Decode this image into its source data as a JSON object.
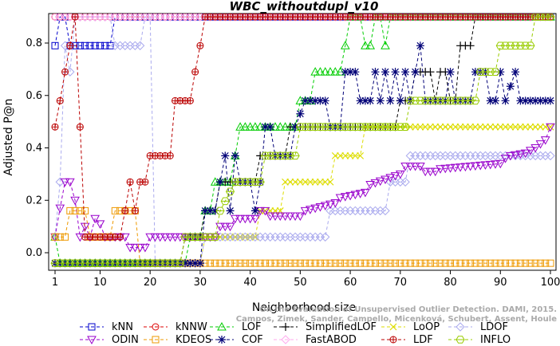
{
  "chart_data": {
    "type": "line",
    "title": "WBC_withoutdupl_v10",
    "xlabel": "Neighborhood size",
    "ylabel": "Adjusted P@n",
    "xlim": [
      1,
      100
    ],
    "ylim": [
      -0.04,
      0.9
    ],
    "xticks": [
      1,
      10,
      20,
      30,
      40,
      50,
      60,
      70,
      80,
      90,
      100
    ],
    "yticks": [
      0.0,
      0.2,
      0.4,
      0.6,
      0.8
    ],
    "grid": false,
    "legend_position": "bottom",
    "credit": "Campos, Zimek, Sander, Campello, Micenková, Schubert, Assent, Houle",
    "credit_line1": "On the Evaluation of Unsupervised Outlier Detection. DAMI, 2015.",
    "series": [
      {
        "name": "kNN",
        "color": "#0000cc",
        "marker": "square",
        "points": [
          [
            1,
            0.79
          ],
          [
            2,
            0.9
          ],
          [
            3,
            0.9
          ],
          [
            4,
            0.79
          ],
          [
            5,
            0.79
          ],
          [
            6,
            0.79
          ],
          [
            7,
            0.79
          ],
          [
            8,
            0.79
          ],
          [
            9,
            0.79
          ],
          [
            10,
            0.79
          ],
          [
            11,
            0.79
          ],
          [
            12,
            0.79
          ],
          [
            13,
            0.9
          ],
          [
            100,
            0.9
          ]
        ]
      },
      {
        "name": "kNNW",
        "color": "#dd0000",
        "marker": "circle",
        "points": [
          [
            1,
            0.9
          ],
          [
            3,
            0.9
          ],
          [
            100,
            0.9
          ]
        ]
      },
      {
        "name": "LOF",
        "color": "#00cc00",
        "marker": "triangle-up",
        "points": [
          [
            1,
            0.06
          ],
          [
            2,
            -0.04
          ],
          [
            27,
            -0.04
          ],
          [
            28,
            0.06
          ],
          [
            30,
            0.06
          ],
          [
            31,
            0.16
          ],
          [
            32,
            0.16
          ],
          [
            33,
            0.27
          ],
          [
            36,
            0.27
          ],
          [
            37,
            0.37
          ],
          [
            38,
            0.48
          ],
          [
            49,
            0.48
          ],
          [
            50,
            0.58
          ],
          [
            52,
            0.58
          ],
          [
            53,
            0.69
          ],
          [
            58,
            0.69
          ],
          [
            59,
            0.79
          ],
          [
            60,
            0.9
          ],
          [
            62,
            0.9
          ],
          [
            63,
            0.79
          ],
          [
            64,
            0.79
          ],
          [
            65,
            0.9
          ],
          [
            66,
            0.9
          ],
          [
            67,
            0.79
          ],
          [
            68,
            0.9
          ],
          [
            100,
            0.9
          ]
        ]
      },
      {
        "name": "SimplifiedLOF",
        "color": "#000000",
        "marker": "plus",
        "points": [
          [
            1,
            -0.04
          ],
          [
            26,
            -0.04
          ],
          [
            27,
            0.06
          ],
          [
            30,
            0.06
          ],
          [
            31,
            0.16
          ],
          [
            32,
            0.16
          ],
          [
            33,
            0.16
          ],
          [
            34,
            0.27
          ],
          [
            41,
            0.27
          ],
          [
            42,
            0.37
          ],
          [
            47,
            0.37
          ],
          [
            48,
            0.48
          ],
          [
            68,
            0.48
          ],
          [
            69,
            0.48
          ],
          [
            70,
            0.58
          ],
          [
            72,
            0.58
          ],
          [
            73,
            0.69
          ],
          [
            74,
            0.69
          ],
          [
            75,
            0.69
          ],
          [
            76,
            0.69
          ],
          [
            77,
            0.58
          ],
          [
            78,
            0.69
          ],
          [
            79,
            0.69
          ],
          [
            80,
            0.58
          ],
          [
            81,
            0.58
          ],
          [
            82,
            0.79
          ],
          [
            83,
            0.79
          ],
          [
            84,
            0.79
          ],
          [
            85,
            0.9
          ],
          [
            100,
            0.9
          ]
        ]
      },
      {
        "name": "LoOP",
        "color": "#dddd00",
        "marker": "x",
        "points": [
          [
            1,
            -0.04
          ],
          [
            30,
            -0.04
          ],
          [
            31,
            0.06
          ],
          [
            41,
            0.06
          ],
          [
            42,
            0.16
          ],
          [
            46,
            0.16
          ],
          [
            47,
            0.27
          ],
          [
            56,
            0.27
          ],
          [
            57,
            0.37
          ],
          [
            62,
            0.37
          ],
          [
            63,
            0.48
          ],
          [
            100,
            0.48
          ]
        ]
      },
      {
        "name": "LDOF",
        "color": "#aaaaee",
        "marker": "diamond",
        "points": [
          [
            1,
            0.06
          ],
          [
            2,
            0.27
          ],
          [
            3,
            0.79
          ],
          [
            4,
            0.69
          ],
          [
            5,
            0.9
          ],
          [
            12,
            0.9
          ],
          [
            13,
            0.79
          ],
          [
            18,
            0.79
          ],
          [
            19,
            0.9
          ],
          [
            20,
            0.9
          ],
          [
            21,
            -0.04
          ],
          [
            30,
            -0.04
          ],
          [
            31,
            0.06
          ],
          [
            55,
            0.06
          ],
          [
            56,
            0.16
          ],
          [
            67,
            0.16
          ],
          [
            68,
            0.27
          ],
          [
            71,
            0.27
          ],
          [
            72,
            0.37
          ],
          [
            100,
            0.37
          ]
        ]
      },
      {
        "name": "ODIN",
        "color": "#9900cc",
        "marker": "triangle-down",
        "points": [
          [
            1,
            0.06
          ],
          [
            2,
            0.17
          ],
          [
            3,
            0.27
          ],
          [
            4,
            0.27
          ],
          [
            5,
            0.2
          ],
          [
            6,
            0.06
          ],
          [
            7,
            0.1
          ],
          [
            8,
            0.06
          ],
          [
            9,
            0.13
          ],
          [
            10,
            0.11
          ],
          [
            11,
            0.06
          ],
          [
            15,
            0.06
          ],
          [
            16,
            0.02
          ],
          [
            19,
            0.02
          ],
          [
            20,
            0.06
          ],
          [
            29,
            0.06
          ],
          [
            30,
            0.06
          ],
          [
            33,
            0.06
          ],
          [
            34,
            0.1
          ],
          [
            36,
            0.1
          ],
          [
            37,
            0.13
          ],
          [
            41,
            0.13
          ],
          [
            42,
            0.16
          ],
          [
            43,
            0.16
          ],
          [
            44,
            0.14
          ],
          [
            50,
            0.14
          ],
          [
            51,
            0.16
          ],
          [
            57,
            0.19
          ],
          [
            58,
            0.21
          ],
          [
            63,
            0.23
          ],
          [
            64,
            0.26
          ],
          [
            70,
            0.3
          ],
          [
            71,
            0.33
          ],
          [
            74,
            0.33
          ],
          [
            75,
            0.31
          ],
          [
            77,
            0.31
          ],
          [
            78,
            0.32
          ],
          [
            90,
            0.34
          ],
          [
            91,
            0.36
          ],
          [
            92,
            0.37
          ],
          [
            95,
            0.38
          ],
          [
            97,
            0.4
          ],
          [
            99,
            0.43
          ],
          [
            100,
            0.48
          ]
        ]
      },
      {
        "name": "KDEOS",
        "color": "#ee9900",
        "marker": "square",
        "points": [
          [
            1,
            0.06
          ],
          [
            3,
            0.06
          ],
          [
            4,
            0.16
          ],
          [
            7,
            0.16
          ],
          [
            8,
            0.06
          ],
          [
            12,
            0.06
          ],
          [
            13,
            0.16
          ],
          [
            17,
            0.16
          ],
          [
            18,
            -0.04
          ],
          [
            100,
            -0.04
          ]
        ]
      },
      {
        "name": "COF",
        "color": "#000077",
        "marker": "asterisk",
        "points": [
          [
            1,
            -0.04
          ],
          [
            30,
            -0.04
          ],
          [
            31,
            0.16
          ],
          [
            33,
            0.16
          ],
          [
            34,
            0.27
          ],
          [
            35,
            0.37
          ],
          [
            36,
            0.16
          ],
          [
            37,
            0.37
          ],
          [
            38,
            0.27
          ],
          [
            40,
            0.27
          ],
          [
            41,
            0.16
          ],
          [
            42,
            0.27
          ],
          [
            43,
            0.48
          ],
          [
            44,
            0.48
          ],
          [
            45,
            0.37
          ],
          [
            48,
            0.37
          ],
          [
            49,
            0.48
          ],
          [
            51,
            0.58
          ],
          [
            55,
            0.58
          ],
          [
            56,
            0.48
          ],
          [
            58,
            0.48
          ],
          [
            59,
            0.69
          ],
          [
            61,
            0.69
          ],
          [
            62,
            0.58
          ],
          [
            64,
            0.58
          ],
          [
            65,
            0.69
          ],
          [
            66,
            0.58
          ],
          [
            67,
            0.69
          ],
          [
            68,
            0.58
          ],
          [
            69,
            0.69
          ],
          [
            70,
            0.58
          ],
          [
            71,
            0.69
          ],
          [
            72,
            0.58
          ],
          [
            73,
            0.69
          ],
          [
            74,
            0.79
          ],
          [
            75,
            0.58
          ],
          [
            79,
            0.58
          ],
          [
            80,
            0.69
          ],
          [
            81,
            0.58
          ],
          [
            84,
            0.58
          ],
          [
            85,
            0.69
          ],
          [
            87,
            0.69
          ],
          [
            88,
            0.58
          ],
          [
            89,
            0.58
          ],
          [
            90,
            0.69
          ],
          [
            91,
            0.58
          ],
          [
            93,
            0.69
          ],
          [
            94,
            0.58
          ],
          [
            100,
            0.58
          ]
        ]
      },
      {
        "name": "FastABOD",
        "color": "#ffaaee",
        "marker": "diamond",
        "points": [
          [
            1,
            0.9
          ],
          [
            100,
            0.9
          ]
        ]
      },
      {
        "name": "LDF",
        "color": "#bb0000",
        "marker": "circle-plus",
        "points": [
          [
            1,
            0.48
          ],
          [
            2,
            0.58
          ],
          [
            3,
            0.69
          ],
          [
            4,
            0.79
          ],
          [
            5,
            0.9
          ],
          [
            7,
            0.06
          ],
          [
            14,
            0.06
          ],
          [
            15,
            0.16
          ],
          [
            16,
            0.27
          ],
          [
            17,
            0.16
          ],
          [
            18,
            0.27
          ],
          [
            19,
            0.27
          ],
          [
            20,
            0.37
          ],
          [
            24,
            0.37
          ],
          [
            25,
            0.58
          ],
          [
            28,
            0.58
          ],
          [
            29,
            0.69
          ],
          [
            30,
            0.79
          ],
          [
            31,
            0.9
          ],
          [
            100,
            0.9
          ]
        ]
      },
      {
        "name": "INFLO",
        "color": "#99cc00",
        "marker": "hexagon",
        "points": [
          [
            1,
            -0.04
          ],
          [
            26,
            -0.04
          ],
          [
            27,
            0.06
          ],
          [
            33,
            0.06
          ],
          [
            34,
            0.16
          ],
          [
            37,
            0.27
          ],
          [
            42,
            0.27
          ],
          [
            43,
            0.37
          ],
          [
            49,
            0.37
          ],
          [
            50,
            0.48
          ],
          [
            71,
            0.48
          ],
          [
            72,
            0.58
          ],
          [
            85,
            0.58
          ],
          [
            86,
            0.69
          ],
          [
            89,
            0.69
          ],
          [
            90,
            0.79
          ],
          [
            96,
            0.79
          ],
          [
            97,
            0.9
          ],
          [
            100,
            0.9
          ]
        ]
      }
    ]
  }
}
